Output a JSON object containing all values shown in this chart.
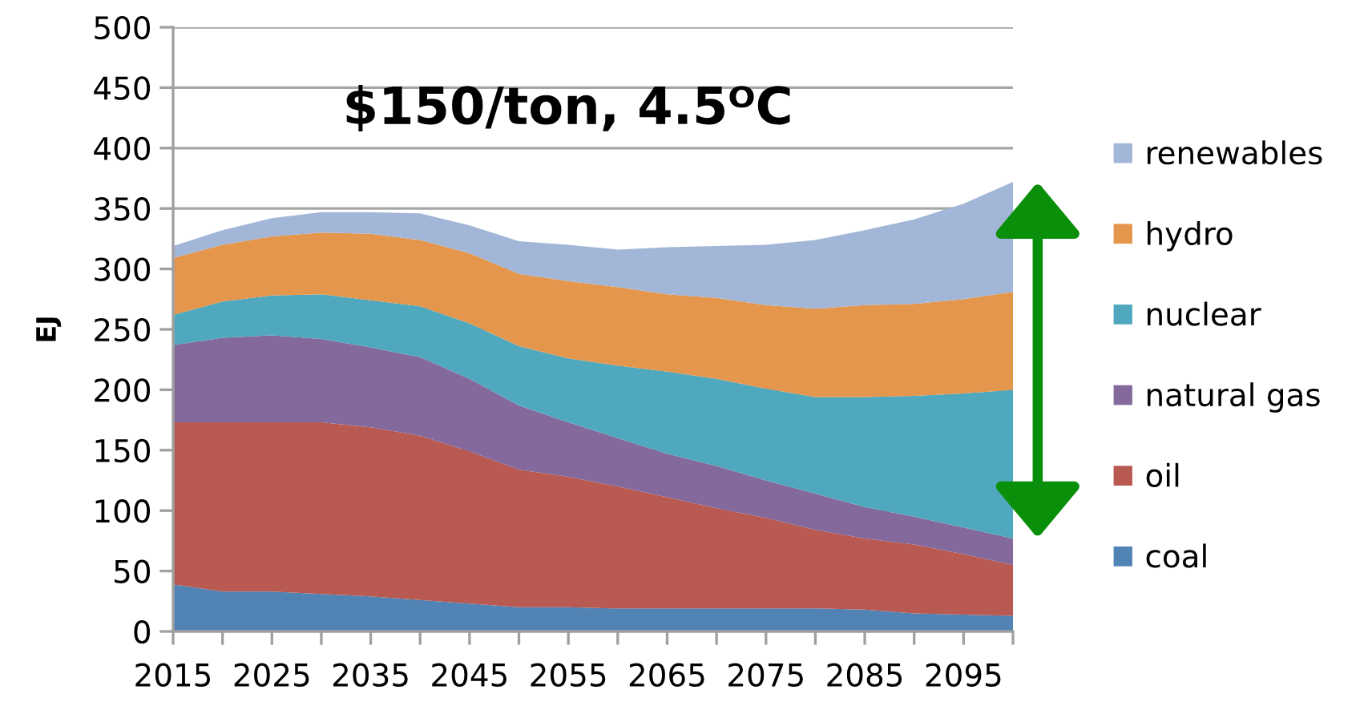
{
  "chart_data": {
    "type": "area",
    "stacked": true,
    "title": "$150/ton, 4.5ᴼC",
    "ylabel": "EJ",
    "categories": [
      "2015",
      null,
      "2025",
      null,
      "2035",
      null,
      "2045",
      null,
      "2055",
      null,
      "2065",
      null,
      "2075",
      null,
      "2085",
      null,
      "2095",
      null
    ],
    "ylim": [
      0,
      500
    ],
    "yticks": [
      0,
      50,
      100,
      150,
      200,
      250,
      300,
      350,
      400,
      450,
      500
    ],
    "grid": "y",
    "legend": "right",
    "series": [
      {
        "name": "coal",
        "color": "#5283b5",
        "values": [
          39,
          33,
          33,
          31,
          29,
          26,
          23,
          20,
          20,
          19,
          19,
          19,
          19,
          19,
          18,
          15,
          14,
          13
        ]
      },
      {
        "name": "oil",
        "color": "#b85a52",
        "values": [
          134,
          140,
          140,
          142,
          140,
          136,
          126,
          114,
          108,
          101,
          92,
          83,
          75,
          65,
          59,
          57,
          50,
          42
        ]
      },
      {
        "name": "natural gas",
        "color": "#84699c",
        "values": [
          64,
          70,
          72,
          69,
          66,
          65,
          60,
          53,
          45,
          40,
          36,
          35,
          31,
          30,
          26,
          23,
          22,
          22
        ]
      },
      {
        "name": "nuclear",
        "color": "#4fa8be",
        "values": [
          25,
          30,
          33,
          37,
          39,
          42,
          46,
          49,
          53,
          60,
          68,
          72,
          76,
          80,
          91,
          100,
          111,
          123
        ]
      },
      {
        "name": "hydro",
        "color": "#e3964c",
        "values": [
          47,
          47,
          49,
          51,
          55,
          55,
          58,
          60,
          64,
          65,
          64,
          67,
          69,
          73,
          76,
          76,
          78,
          81
        ]
      },
      {
        "name": "renewables",
        "color": "#a2b6d8",
        "values": [
          10,
          12,
          15,
          17,
          18,
          22,
          23,
          27,
          30,
          31,
          39,
          43,
          50,
          57,
          62,
          70,
          79,
          91
        ]
      }
    ]
  }
}
